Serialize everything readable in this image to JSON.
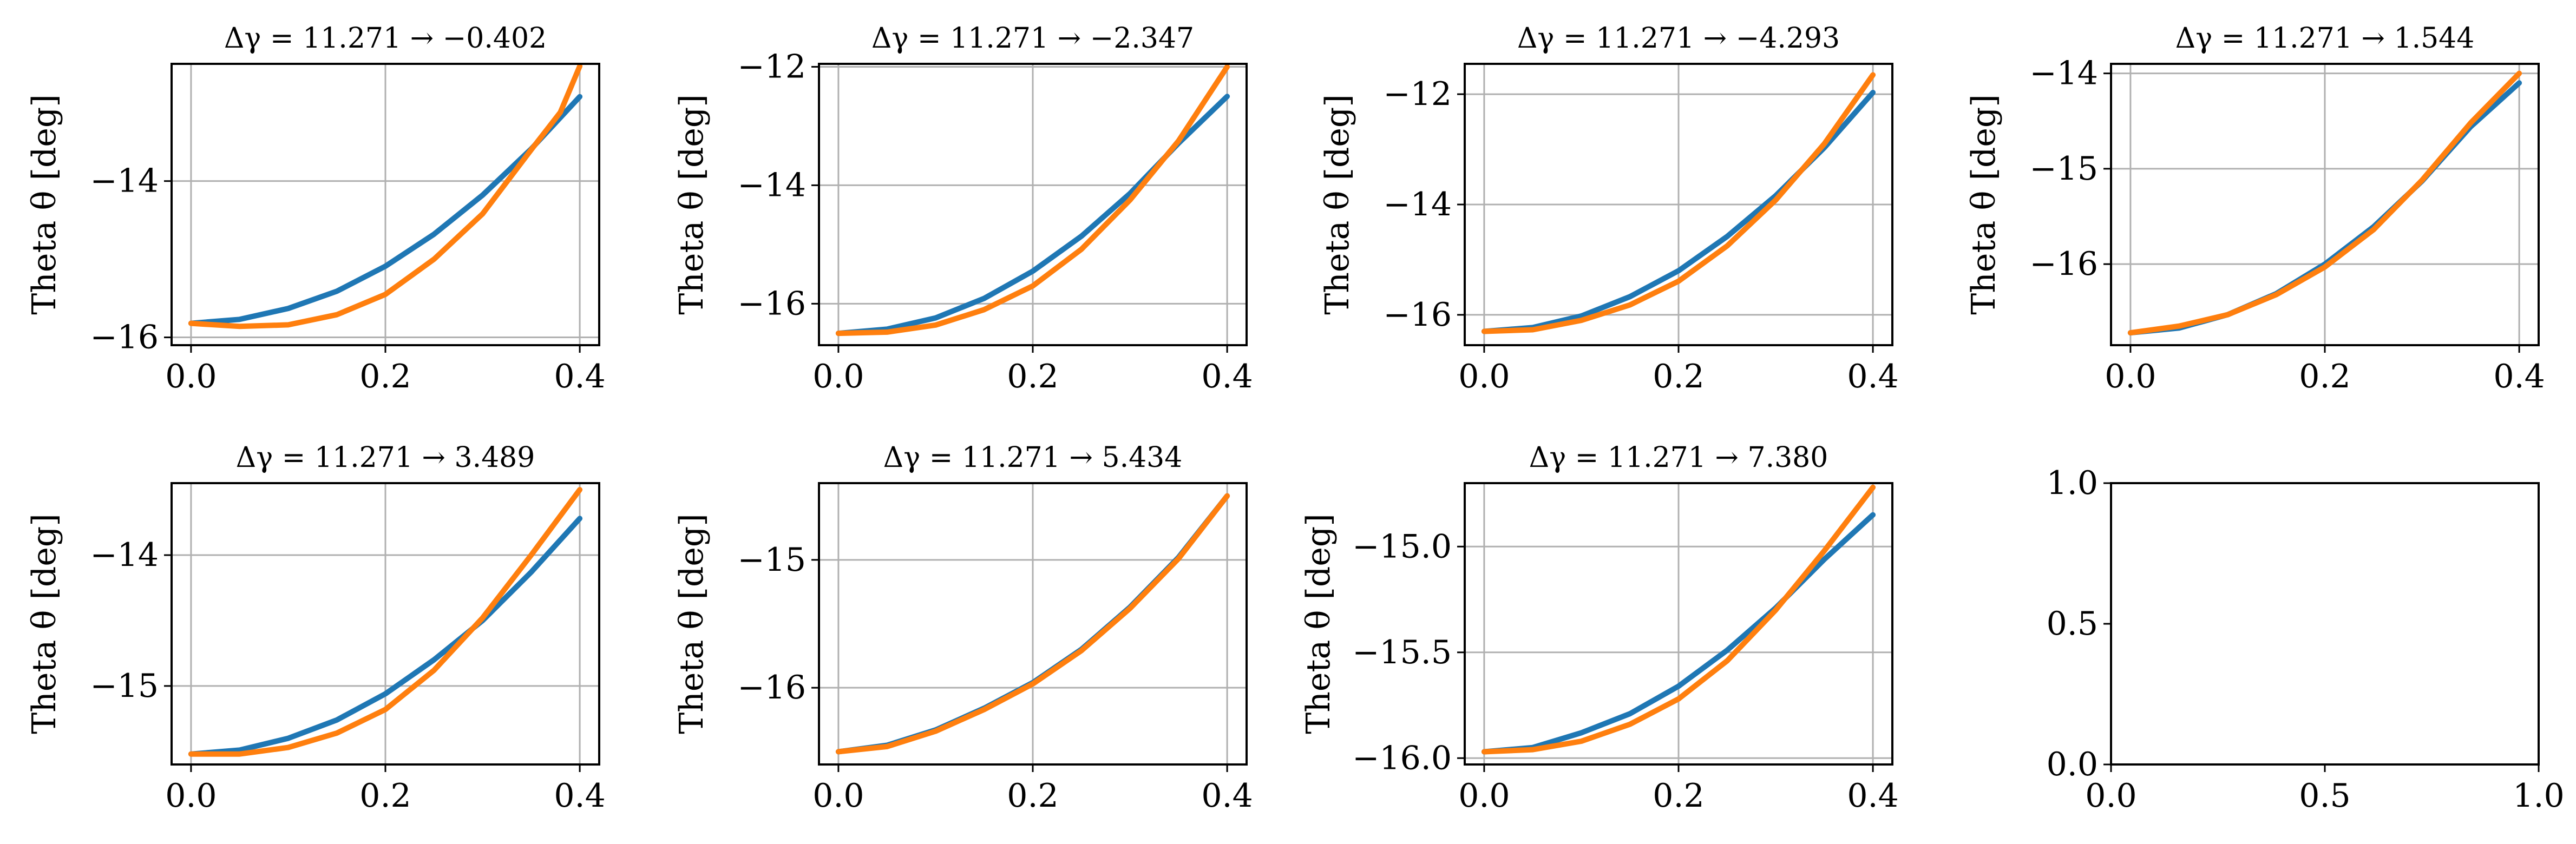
{
  "chart_data": [
    {
      "type": "line",
      "title": "Δγ = 11.271 → −0.402",
      "ylabel": "Theta θ [deg]",
      "xlim": [
        -0.02,
        0.42
      ],
      "ylim": [
        -16.1,
        -12.5
      ],
      "xticks": [
        0.0,
        0.2,
        0.4
      ],
      "xtick_labels": [
        "0.0",
        "0.2",
        "0.4"
      ],
      "yticks": [
        -14,
        -16
      ],
      "ytick_labels": [
        "−14",
        "−16"
      ],
      "grid": true,
      "series": [
        {
          "color": "#1f77b4",
          "x": [
            0.0,
            0.05,
            0.1,
            0.15,
            0.2,
            0.25,
            0.3,
            0.35,
            0.4
          ],
          "y": [
            -15.82,
            -15.77,
            -15.63,
            -15.41,
            -15.09,
            -14.68,
            -14.18,
            -13.59,
            -12.92
          ]
        },
        {
          "color": "#ff7f0e",
          "x": [
            0.0,
            0.05,
            0.1,
            0.15,
            0.2,
            0.25,
            0.3,
            0.35,
            0.38,
            0.4
          ],
          "y": [
            -15.82,
            -15.86,
            -15.84,
            -15.71,
            -15.45,
            -15.0,
            -14.42,
            -13.6,
            -13.12,
            -12.53
          ]
        }
      ]
    },
    {
      "type": "line",
      "title": "Δγ = 11.271 → −2.347",
      "ylabel": "Theta θ [deg]",
      "xlim": [
        -0.02,
        0.42
      ],
      "ylim": [
        -16.7,
        -11.95
      ],
      "xticks": [
        0.0,
        0.2,
        0.4
      ],
      "xtick_labels": [
        "0.0",
        "0.2",
        "0.4"
      ],
      "yticks": [
        -12,
        -14,
        -16
      ],
      "ytick_labels": [
        "−12",
        "−14",
        "−16"
      ],
      "grid": true,
      "series": [
        {
          "color": "#1f77b4",
          "x": [
            0.0,
            0.05,
            0.1,
            0.15,
            0.2,
            0.25,
            0.3,
            0.35,
            0.4
          ],
          "y": [
            -16.5,
            -16.43,
            -16.24,
            -15.91,
            -15.45,
            -14.86,
            -14.14,
            -13.29,
            -12.5
          ]
        },
        {
          "color": "#ff7f0e",
          "x": [
            0.0,
            0.05,
            0.1,
            0.15,
            0.2,
            0.25,
            0.3,
            0.35,
            0.4
          ],
          "y": [
            -16.5,
            -16.48,
            -16.36,
            -16.1,
            -15.7,
            -15.08,
            -14.25,
            -13.25,
            -12.0
          ]
        }
      ]
    },
    {
      "type": "line",
      "title": "Δγ = 11.271 → −4.293",
      "ylabel": "Theta θ [deg]",
      "xlim": [
        -0.02,
        0.42
      ],
      "ylim": [
        -16.55,
        -11.45
      ],
      "xticks": [
        0.0,
        0.2,
        0.4
      ],
      "xtick_labels": [
        "0.0",
        "0.2",
        "0.4"
      ],
      "yticks": [
        -12,
        -14,
        -16
      ],
      "ytick_labels": [
        "−12",
        "−14",
        "−16"
      ],
      "grid": true,
      "series": [
        {
          "color": "#1f77b4",
          "x": [
            0.0,
            0.05,
            0.1,
            0.15,
            0.2,
            0.25,
            0.3,
            0.35,
            0.4
          ],
          "y": [
            -16.3,
            -16.23,
            -16.02,
            -15.67,
            -15.2,
            -14.58,
            -13.84,
            -12.97,
            -11.97
          ]
        },
        {
          "color": "#ff7f0e",
          "x": [
            0.0,
            0.05,
            0.1,
            0.15,
            0.2,
            0.25,
            0.3,
            0.35,
            0.4
          ],
          "y": [
            -16.3,
            -16.27,
            -16.1,
            -15.82,
            -15.39,
            -14.75,
            -13.92,
            -12.9,
            -11.65
          ]
        }
      ]
    },
    {
      "type": "line",
      "title": "Δγ = 11.271 → 1.544",
      "ylabel": "Theta θ [deg]",
      "xlim": [
        -0.02,
        0.42
      ],
      "ylim": [
        -16.85,
        -13.9
      ],
      "xticks": [
        0.0,
        0.2,
        0.4
      ],
      "xtick_labels": [
        "0.0",
        "0.2",
        "0.4"
      ],
      "yticks": [
        -14,
        -15,
        -16
      ],
      "ytick_labels": [
        "−14",
        "−15",
        "−16"
      ],
      "grid": true,
      "series": [
        {
          "color": "#1f77b4",
          "x": [
            0.0,
            0.05,
            0.1,
            0.15,
            0.2,
            0.25,
            0.3,
            0.35,
            0.4
          ],
          "y": [
            -16.72,
            -16.67,
            -16.53,
            -16.31,
            -16.0,
            -15.61,
            -15.13,
            -14.56,
            -14.1
          ]
        },
        {
          "color": "#ff7f0e",
          "x": [
            0.0,
            0.05,
            0.1,
            0.15,
            0.2,
            0.25,
            0.3,
            0.35,
            0.4
          ],
          "y": [
            -16.72,
            -16.65,
            -16.53,
            -16.32,
            -16.03,
            -15.64,
            -15.12,
            -14.52,
            -14.0
          ]
        }
      ]
    },
    {
      "type": "line",
      "title": "Δγ = 11.271 → 3.489",
      "ylabel": "Theta θ [deg]",
      "xlim": [
        -0.02,
        0.42
      ],
      "ylim": [
        -15.6,
        -13.45
      ],
      "xticks": [
        0.0,
        0.2,
        0.4
      ],
      "xtick_labels": [
        "0.0",
        "0.2",
        "0.4"
      ],
      "yticks": [
        -14,
        -15
      ],
      "ytick_labels": [
        "−14",
        "−15"
      ],
      "grid": true,
      "series": [
        {
          "color": "#1f77b4",
          "x": [
            0.0,
            0.05,
            0.1,
            0.15,
            0.2,
            0.25,
            0.3,
            0.35,
            0.4
          ],
          "y": [
            -15.52,
            -15.49,
            -15.4,
            -15.26,
            -15.06,
            -14.8,
            -14.5,
            -14.13,
            -13.72
          ]
        },
        {
          "color": "#ff7f0e",
          "x": [
            0.0,
            0.05,
            0.1,
            0.15,
            0.2,
            0.25,
            0.3,
            0.35,
            0.4
          ],
          "y": [
            -15.52,
            -15.52,
            -15.47,
            -15.36,
            -15.18,
            -14.88,
            -14.48,
            -14.0,
            -13.5
          ]
        }
      ]
    },
    {
      "type": "line",
      "title": "Δγ = 11.271 → 5.434",
      "ylabel": "Theta θ [deg]",
      "xlim": [
        -0.02,
        0.42
      ],
      "ylim": [
        -16.6,
        -14.4
      ],
      "xticks": [
        0.0,
        0.2,
        0.4
      ],
      "xtick_labels": [
        "0.0",
        "0.2",
        "0.4"
      ],
      "yticks": [
        -15,
        -16
      ],
      "ytick_labels": [
        "−15",
        "−16"
      ],
      "grid": true,
      "series": [
        {
          "color": "#1f77b4",
          "x": [
            0.0,
            0.05,
            0.1,
            0.15,
            0.2,
            0.25,
            0.3,
            0.35,
            0.4
          ],
          "y": [
            -16.5,
            -16.45,
            -16.33,
            -16.16,
            -15.96,
            -15.7,
            -15.37,
            -14.98,
            -14.5
          ]
        },
        {
          "color": "#ff7f0e",
          "x": [
            0.0,
            0.05,
            0.1,
            0.15,
            0.2,
            0.25,
            0.3,
            0.35,
            0.4
          ],
          "y": [
            -16.5,
            -16.46,
            -16.34,
            -16.17,
            -15.97,
            -15.71,
            -15.38,
            -14.99,
            -14.5
          ]
        }
      ]
    },
    {
      "type": "line",
      "title": "Δγ = 11.271 → 7.380",
      "ylabel": "Theta θ [deg]",
      "xlim": [
        -0.02,
        0.42
      ],
      "ylim": [
        -16.03,
        -14.7
      ],
      "xticks": [
        0.0,
        0.2,
        0.4
      ],
      "xtick_labels": [
        "0.0",
        "0.2",
        "0.4"
      ],
      "yticks": [
        -15.0,
        -15.5,
        -16.0
      ],
      "ytick_labels": [
        "−15.0",
        "−15.5",
        "−16.0"
      ],
      "grid": true,
      "series": [
        {
          "color": "#1f77b4",
          "x": [
            0.0,
            0.05,
            0.1,
            0.15,
            0.2,
            0.25,
            0.3,
            0.35,
            0.4
          ],
          "y": [
            -15.97,
            -15.95,
            -15.88,
            -15.79,
            -15.66,
            -15.49,
            -15.29,
            -15.06,
            -14.85
          ]
        },
        {
          "color": "#ff7f0e",
          "x": [
            0.0,
            0.05,
            0.1,
            0.15,
            0.2,
            0.25,
            0.3,
            0.35,
            0.4
          ],
          "y": [
            -15.97,
            -15.96,
            -15.92,
            -15.84,
            -15.72,
            -15.54,
            -15.3,
            -15.02,
            -14.72
          ]
        }
      ]
    },
    {
      "type": "line",
      "title": "",
      "ylabel": "",
      "xlim": [
        0.0,
        1.0
      ],
      "ylim": [
        0.0,
        1.0
      ],
      "xticks": [
        0.0,
        0.5,
        1.0
      ],
      "xtick_labels": [
        "0.0",
        "0.5",
        "1.0"
      ],
      "yticks": [
        0.0,
        0.5,
        1.0
      ],
      "ytick_labels": [
        "0.0",
        "0.5",
        "1.0"
      ],
      "grid": false,
      "series": []
    }
  ]
}
